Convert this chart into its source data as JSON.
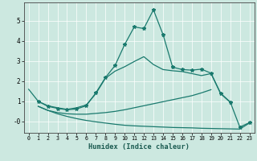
{
  "xlabel": "Humidex (Indice chaleur)",
  "bg_color": "#cce8e0",
  "line_color": "#1a7a6e",
  "grid_color": "#ffffff",
  "xlim": [
    -0.5,
    23.5
  ],
  "ylim": [
    -0.55,
    5.9
  ],
  "yticks": [
    0,
    1,
    2,
    3,
    4,
    5
  ],
  "ytick_labels": [
    "-0",
    "1",
    "2",
    "3",
    "4",
    "5"
  ],
  "series1_x": [
    0,
    1,
    2,
    3,
    4,
    5,
    6,
    7,
    8,
    9,
    10,
    11,
    12,
    13,
    14,
    15,
    16,
    17,
    18,
    19,
    20,
    21
  ],
  "series1_y": [
    1.6,
    1.0,
    0.78,
    0.68,
    0.6,
    0.68,
    0.82,
    1.38,
    2.15,
    2.5,
    2.72,
    2.98,
    3.22,
    2.83,
    2.58,
    2.52,
    2.48,
    2.38,
    2.28,
    2.38,
    1.38,
    0.95
  ],
  "series2_x": [
    1,
    2,
    3,
    4,
    5,
    6,
    7,
    8,
    9,
    10,
    11,
    12,
    13,
    14,
    15,
    16,
    17,
    18,
    19,
    20,
    21,
    22,
    23
  ],
  "series2_y": [
    1.0,
    0.75,
    0.65,
    0.58,
    0.62,
    0.78,
    1.42,
    2.18,
    2.78,
    3.82,
    4.7,
    4.62,
    5.55,
    4.32,
    2.7,
    2.58,
    2.55,
    2.6,
    2.4,
    1.4,
    0.97,
    -0.28,
    -0.06
  ],
  "series3_x": [
    1,
    2,
    3,
    4,
    5,
    6,
    7,
    8,
    9,
    10,
    11,
    12,
    13,
    14,
    15,
    16,
    17,
    18,
    19
  ],
  "series3_y": [
    0.75,
    0.55,
    0.44,
    0.38,
    0.36,
    0.36,
    0.4,
    0.44,
    0.5,
    0.58,
    0.68,
    0.78,
    0.88,
    0.98,
    1.08,
    1.18,
    1.28,
    1.42,
    1.58
  ],
  "series4_x": [
    1,
    2,
    3,
    4,
    5,
    6,
    7,
    8,
    9,
    10,
    11,
    12,
    13,
    14,
    15,
    16,
    17,
    18,
    19,
    20,
    21,
    22,
    23
  ],
  "series4_y": [
    0.75,
    0.55,
    0.38,
    0.25,
    0.14,
    0.05,
    -0.02,
    -0.08,
    -0.14,
    -0.19,
    -0.22,
    -0.24,
    -0.26,
    -0.28,
    -0.3,
    -0.31,
    -0.32,
    -0.34,
    -0.35,
    -0.36,
    -0.37,
    -0.38,
    -0.08
  ]
}
